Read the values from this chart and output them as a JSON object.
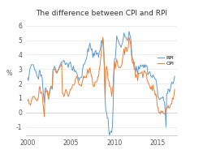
{
  "title": "The difference between CPI and RPI",
  "rpi_color": "#5b9bd5",
  "cpi_color": "#ed7d31",
  "background_color": "#ffffff",
  "xlim": [
    1999.8,
    2017.2
  ],
  "ylim": [
    -1.6,
    6.5
  ],
  "yticks": [
    -1,
    0,
    1,
    2,
    3,
    4,
    5,
    6
  ],
  "xticks": [
    2000,
    2005,
    2010,
    2015
  ],
  "ylabel": "%",
  "legend_labels": [
    "RPI",
    "CPI"
  ],
  "title_fontsize": 6.5,
  "axis_fontsize": 5.5,
  "rpi_data": [
    2.4,
    2.2,
    2.6,
    3.0,
    3.1,
    3.3,
    3.3,
    3.3,
    3.3,
    3.1,
    2.9,
    2.9,
    2.7,
    2.5,
    2.4,
    2.3,
    2.9,
    2.9,
    2.5,
    2.6,
    2.4,
    1.7,
    1.1,
    0.7,
    1.6,
    1.7,
    1.5,
    1.5,
    1.3,
    1.2,
    1.3,
    1.5,
    1.8,
    1.7,
    1.6,
    2.9,
    3.0,
    3.2,
    3.1,
    2.9,
    2.8,
    2.8,
    2.9,
    3.0,
    3.2,
    3.3,
    3.4,
    3.5,
    3.5,
    3.5,
    3.6,
    3.5,
    3.3,
    3.4,
    3.4,
    3.3,
    3.1,
    3.4,
    3.4,
    3.5,
    3.2,
    3.0,
    2.9,
    3.2,
    3.0,
    2.8,
    2.9,
    2.8,
    2.7,
    2.5,
    2.4,
    2.2,
    2.4,
    2.4,
    2.4,
    2.5,
    3.0,
    3.3,
    3.3,
    3.4,
    3.6,
    3.7,
    3.9,
    4.4,
    4.2,
    4.6,
    4.8,
    4.5,
    4.3,
    4.4,
    3.8,
    4.1,
    3.9,
    4.2,
    4.3,
    4.0,
    4.1,
    4.1,
    3.8,
    4.2,
    4.3,
    4.6,
    5.0,
    4.8,
    5.0,
    4.2,
    3.0,
    0.9,
    0.1,
    0.0,
    -0.4,
    -0.4,
    -1.2,
    -1.6,
    -1.4,
    -1.3,
    -1.4,
    -1.0,
    0.3,
    2.4,
    3.7,
    3.7,
    4.4,
    5.3,
    5.1,
    5.0,
    4.8,
    4.7,
    4.6,
    4.5,
    4.7,
    4.8,
    5.1,
    5.5,
    5.3,
    5.2,
    5.2,
    5.0,
    5.0,
    5.2,
    5.6,
    5.4,
    5.2,
    4.8,
    3.9,
    3.7,
    3.6,
    3.5,
    3.1,
    2.8,
    3.2,
    2.9,
    2.6,
    3.2,
    3.0,
    3.1,
    3.3,
    3.2,
    3.2,
    3.3,
    3.1,
    3.3,
    3.1,
    3.3,
    3.2,
    3.2,
    2.6,
    2.7,
    2.8,
    2.8,
    2.5,
    2.5,
    2.4,
    2.6,
    2.5,
    2.4,
    2.3,
    2.3,
    2.0,
    1.6,
    1.1,
    1.0,
    0.9,
    0.9,
    1.0,
    1.0,
    1.0,
    1.1,
    0.8,
    0.7,
    0.1,
    -1.0,
    1.3,
    1.3,
    1.6,
    1.6,
    1.4,
    1.6,
    1.9,
    2.1,
    2.0,
    2.0,
    2.2,
    2.5
  ],
  "cpi_data": [
    0.8,
    0.9,
    0.6,
    0.6,
    0.5,
    0.8,
    0.9,
    1.1,
    1.1,
    1.1,
    1.0,
    0.9,
    0.9,
    0.8,
    0.9,
    1.1,
    1.7,
    1.8,
    1.3,
    1.4,
    1.3,
    0.7,
    0.2,
    -0.3,
    1.5,
    1.4,
    1.5,
    1.5,
    1.1,
    0.9,
    1.4,
    1.6,
    1.8,
    1.8,
    1.8,
    2.9,
    3.0,
    3.0,
    2.9,
    2.8,
    2.7,
    2.8,
    2.9,
    3.0,
    3.1,
    3.2,
    3.2,
    3.4,
    1.3,
    1.3,
    1.1,
    1.2,
    1.5,
    1.6,
    1.4,
    1.3,
    1.1,
    1.2,
    1.4,
    1.6,
    1.6,
    1.7,
    1.9,
    1.9,
    1.9,
    2.0,
    2.3,
    2.4,
    2.5,
    2.3,
    2.1,
    1.9,
    1.9,
    1.9,
    1.8,
    2.0,
    2.2,
    2.5,
    2.4,
    2.5,
    2.4,
    2.4,
    2.7,
    3.0,
    2.7,
    2.8,
    3.1,
    2.8,
    2.5,
    2.4,
    1.9,
    1.8,
    1.8,
    2.1,
    2.1,
    2.1,
    2.2,
    2.5,
    2.5,
    3.0,
    3.3,
    3.8,
    4.4,
    4.7,
    5.2,
    4.5,
    3.0,
    0.9,
    3.0,
    3.2,
    2.9,
    2.3,
    2.2,
    1.8,
    1.8,
    1.6,
    1.1,
    1.5,
    1.9,
    2.9,
    3.5,
    3.0,
    3.4,
    3.7,
    3.4,
    3.2,
    3.1,
    3.1,
    3.1,
    3.2,
    3.3,
    3.7,
    4.0,
    4.4,
    4.0,
    4.5,
    4.5,
    4.2,
    4.4,
    4.5,
    5.2,
    5.0,
    4.8,
    4.2,
    3.6,
    3.4,
    3.5,
    3.0,
    3.0,
    2.4,
    2.6,
    2.5,
    2.2,
    2.7,
    2.7,
    2.7,
    2.7,
    2.8,
    2.8,
    2.4,
    2.7,
    2.9,
    2.8,
    2.7,
    2.7,
    2.2,
    2.1,
    2.0,
    1.9,
    1.7,
    1.6,
    1.8,
    1.5,
    1.9,
    1.6,
    1.5,
    1.2,
    1.3,
    1.0,
    0.5,
    0.3,
    0.0,
    0.0,
    -0.1,
    0.1,
    0.0,
    0.1,
    0.0,
    -0.1,
    -0.1,
    -0.1,
    0.2,
    0.3,
    0.3,
    0.5,
    0.3,
    0.3,
    0.5,
    0.6,
    0.6,
    1.0,
    0.9,
    1.2,
    1.6
  ]
}
